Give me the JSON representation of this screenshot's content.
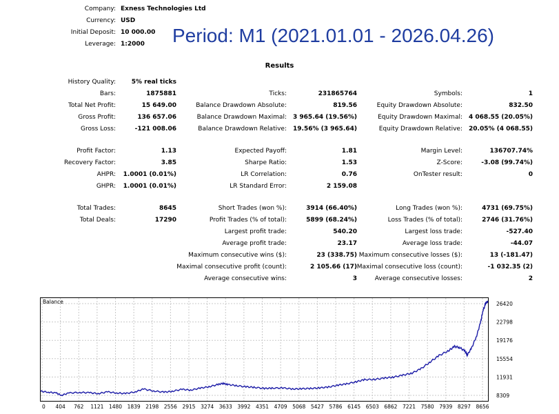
{
  "header": {
    "company_label": "Company:",
    "company_value": "Exness Technologies Ltd",
    "currency_label": "Currency:",
    "currency_value": "USD",
    "deposit_label": "Initial Deposit:",
    "deposit_value": "10 000.00",
    "leverage_label": "Leverage:",
    "leverage_value": "1:2000"
  },
  "period_text": "Period: M1 (2021.01.01 - 2026.04.26)",
  "results_title": "Results",
  "stats": {
    "col1": [
      {
        "label": "History Quality:",
        "value": "5% real ticks"
      },
      {
        "label": "Bars:",
        "value": "1875881"
      },
      {
        "label": "Total Net Profit:",
        "value": "15 649.00"
      },
      {
        "label": "Gross Profit:",
        "value": "136 657.06"
      },
      {
        "label": "Gross Loss:",
        "value": "-121 008.06"
      },
      {
        "label": "Profit Factor:",
        "value": "1.13"
      },
      {
        "label": "Recovery Factor:",
        "value": "3.85"
      },
      {
        "label": "AHPR:",
        "value": "1.0001 (0.01%)"
      },
      {
        "label": "GHPR:",
        "value": "1.0001 (0.01%)"
      },
      {
        "label": "Total Trades:",
        "value": "8645"
      },
      {
        "label": "Total Deals:",
        "value": "17290"
      }
    ],
    "col2": [
      {
        "label": "Ticks:",
        "value": "231865764"
      },
      {
        "label": "Balance Drawdown Absolute:",
        "value": "819.56"
      },
      {
        "label": "Balance Drawdown Maximal:",
        "value": "3 965.64 (19.56%)"
      },
      {
        "label": "Balance Drawdown Relative:",
        "value": "19.56% (3 965.64)"
      },
      {
        "label": "Expected Payoff:",
        "value": "1.81"
      },
      {
        "label": "Sharpe Ratio:",
        "value": "1.53"
      },
      {
        "label": "LR Correlation:",
        "value": "0.76"
      },
      {
        "label": "LR Standard Error:",
        "value": "2 159.08"
      },
      {
        "label": "Short Trades (won %):",
        "value": "3914 (66.40%)"
      },
      {
        "label": "Profit Trades (% of total):",
        "value": "5899 (68.24%)"
      },
      {
        "label": "Largest profit trade:",
        "value": "540.20"
      },
      {
        "label": "Average profit trade:",
        "value": "23.17"
      },
      {
        "label": "Maximum consecutive wins ($):",
        "value": "23 (338.75)"
      },
      {
        "label": "Maximal consecutive profit (count):",
        "value": "2 105.66 (17)"
      },
      {
        "label": "Average consecutive wins:",
        "value": "3"
      }
    ],
    "col3": [
      {
        "label": "Symbols:",
        "value": "1"
      },
      {
        "label": "Equity Drawdown Absolute:",
        "value": "832.50"
      },
      {
        "label": "Equity Drawdown Maximal:",
        "value": "4 068.55 (20.05%)"
      },
      {
        "label": "Equity Drawdown Relative:",
        "value": "20.05% (4 068.55)"
      },
      {
        "label": "Margin Level:",
        "value": "136707.74%"
      },
      {
        "label": "Z-Score:",
        "value": "-3.08 (99.74%)"
      },
      {
        "label": "OnTester result:",
        "value": "0"
      },
      {
        "label": "Long Trades (won %):",
        "value": "4731 (69.75%)"
      },
      {
        "label": "Loss Trades (% of total):",
        "value": "2746 (31.76%)"
      },
      {
        "label": "Largest loss trade:",
        "value": "-527.40"
      },
      {
        "label": "Average loss trade:",
        "value": "-44.07"
      },
      {
        "label": "Maximum consecutive losses ($):",
        "value": "13 (-181.47)"
      },
      {
        "label": "Maximal consecutive loss (count):",
        "value": "-1 032.35 (2)"
      },
      {
        "label": "Average consecutive losses:",
        "value": "2"
      }
    ]
  },
  "chart": {
    "title": "Balance",
    "line_color": "#1a1aa6",
    "grid_color": "#c8c8c8",
    "x_ticks": [
      "0",
      "404",
      "762",
      "1121",
      "1480",
      "1839",
      "2198",
      "2556",
      "2915",
      "3274",
      "3633",
      "3992",
      "4351",
      "4709",
      "5068",
      "5427",
      "5786",
      "6145",
      "6503",
      "6862",
      "7221",
      "7580",
      "7939",
      "8297",
      "8656"
    ],
    "y_ticks": [
      "26420",
      "22798",
      "19176",
      "15554",
      "11931",
      "8309"
    ],
    "xlim": [
      0,
      8700
    ],
    "ylim": [
      8309,
      26420
    ],
    "series": [
      [
        0,
        10000
      ],
      [
        150,
        9850
      ],
      [
        300,
        9700
      ],
      [
        404,
        9300
      ],
      [
        550,
        9700
      ],
      [
        762,
        9800
      ],
      [
        950,
        9750
      ],
      [
        1121,
        9600
      ],
      [
        1300,
        9900
      ],
      [
        1480,
        9700
      ],
      [
        1650,
        9600
      ],
      [
        1839,
        9900
      ],
      [
        2000,
        10400
      ],
      [
        2198,
        10050
      ],
      [
        2400,
        9850
      ],
      [
        2556,
        10000
      ],
      [
        2750,
        10350
      ],
      [
        2915,
        10200
      ],
      [
        3100,
        10550
      ],
      [
        3274,
        10800
      ],
      [
        3450,
        11200
      ],
      [
        3550,
        11400
      ],
      [
        3633,
        11200
      ],
      [
        3800,
        11000
      ],
      [
        3992,
        10800
      ],
      [
        4150,
        10700
      ],
      [
        4351,
        10500
      ],
      [
        4500,
        10550
      ],
      [
        4709,
        10600
      ],
      [
        4900,
        10400
      ],
      [
        5068,
        10450
      ],
      [
        5250,
        10500
      ],
      [
        5427,
        10600
      ],
      [
        5600,
        10750
      ],
      [
        5786,
        11100
      ],
      [
        5950,
        11300
      ],
      [
        6145,
        11700
      ],
      [
        6300,
        12050
      ],
      [
        6503,
        12100
      ],
      [
        6700,
        12350
      ],
      [
        6862,
        12500
      ],
      [
        7050,
        12850
      ],
      [
        7221,
        13200
      ],
      [
        7400,
        14000
      ],
      [
        7580,
        15200
      ],
      [
        7750,
        16300
      ],
      [
        7939,
        17200
      ],
      [
        8050,
        17900
      ],
      [
        8150,
        17700
      ],
      [
        8250,
        17100
      ],
      [
        8297,
        16400
      ],
      [
        8380,
        17600
      ],
      [
        8480,
        19800
      ],
      [
        8560,
        22300
      ],
      [
        8600,
        24200
      ],
      [
        8656,
        25500
      ],
      [
        8700,
        25900
      ]
    ]
  }
}
